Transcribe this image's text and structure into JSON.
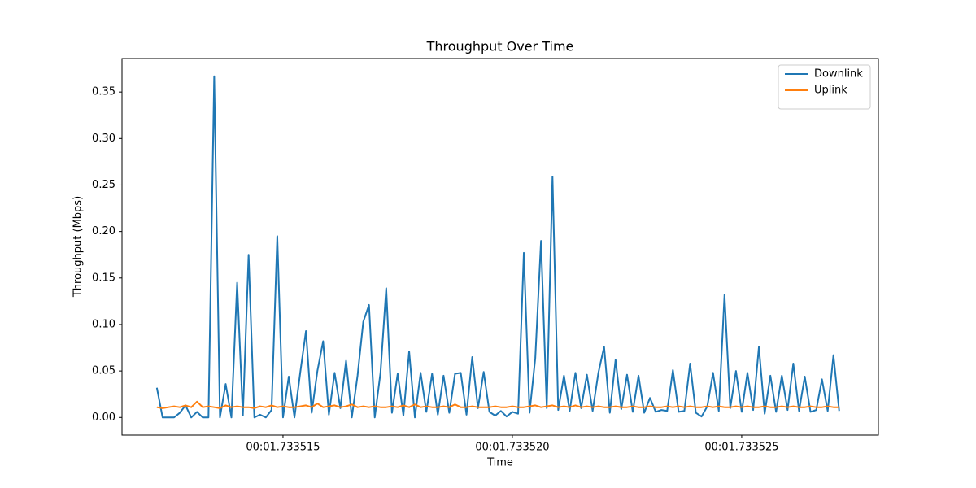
{
  "chart_data": {
    "type": "line",
    "title": "Throughput Over Time",
    "x_label": "Time",
    "y_label": "Throughput (Mbps)",
    "x": [
      1.73351225,
      1.733512375,
      1.7335125,
      1.733512625,
      1.73351275,
      1.733512875,
      1.733513,
      1.733513125,
      1.73351325,
      1.733513375,
      1.7335135,
      1.733513625,
      1.73351375,
      1.733513875,
      1.733514,
      1.733514125,
      1.73351425,
      1.733514375,
      1.7335145,
      1.733514625,
      1.73351475,
      1.733514875,
      1.733515,
      1.733515125,
      1.73351525,
      1.733515375,
      1.7335155,
      1.733515625,
      1.73351575,
      1.733515875,
      1.733516,
      1.733516125,
      1.73351625,
      1.733516375,
      1.7335165,
      1.733516625,
      1.73351675,
      1.733516875,
      1.733517,
      1.733517125,
      1.73351725,
      1.733517375,
      1.7335175,
      1.733517625,
      1.73351775,
      1.733517875,
      1.733518,
      1.733518125,
      1.73351825,
      1.733518375,
      1.7335185,
      1.733518625,
      1.73351875,
      1.733518875,
      1.733519,
      1.733519125,
      1.73351925,
      1.733519375,
      1.7335195,
      1.733519625,
      1.73351975,
      1.733519875,
      1.73352,
      1.733520125,
      1.73352025,
      1.733520375,
      1.7335205,
      1.733520625,
      1.73352075,
      1.733520875,
      1.733521,
      1.733521125,
      1.73352125,
      1.733521375,
      1.7335215,
      1.733521625,
      1.73352175,
      1.733521875,
      1.733522,
      1.733522125,
      1.73352225,
      1.733522375,
      1.7335225,
      1.733522625,
      1.73352275,
      1.733522875,
      1.733523,
      1.733523125,
      1.73352325,
      1.733523375,
      1.7335235,
      1.733523625,
      1.73352375,
      1.733523875,
      1.733524,
      1.733524125,
      1.73352425,
      1.733524375,
      1.7335245,
      1.733524625,
      1.73352475,
      1.733524875,
      1.733525,
      1.733525125,
      1.73352525,
      1.733525375,
      1.7335255,
      1.733525625,
      1.73352575,
      1.733525875,
      1.733526,
      1.733526125,
      1.73352625,
      1.733526375,
      1.7335265,
      1.733526625,
      1.73352675,
      1.733526875,
      1.733527,
      1.733527125
    ],
    "series": [
      {
        "name": "Downlink",
        "color": "#1f77b4",
        "values": [
          0.032,
          0,
          0,
          0,
          0.005,
          0.013,
          0,
          0.006,
          0,
          0,
          0.367,
          0,
          0.036,
          0,
          0.145,
          0.002,
          0.175,
          0,
          0.003,
          0,
          0.008,
          0.195,
          0,
          0.044,
          0,
          0.048,
          0.093,
          0.005,
          0.05,
          0.082,
          0.003,
          0.048,
          0.01,
          0.061,
          0,
          0.045,
          0.103,
          0.121,
          0,
          0.048,
          0.139,
          0.005,
          0.047,
          0.002,
          0.071,
          0,
          0.048,
          0.006,
          0.047,
          0.003,
          0.045,
          0.005,
          0.047,
          0.048,
          0.003,
          0.065,
          0.01,
          0.049,
          0.006,
          0.002,
          0.007,
          0.001,
          0.006,
          0.004,
          0.177,
          0.005,
          0.064,
          0.19,
          0.01,
          0.259,
          0.008,
          0.045,
          0.007,
          0.048,
          0.01,
          0.046,
          0.007,
          0.048,
          0.076,
          0.005,
          0.062,
          0.009,
          0.046,
          0.006,
          0.045,
          0.005,
          0.021,
          0.006,
          0.008,
          0.007,
          0.051,
          0.006,
          0.007,
          0.058,
          0.005,
          0.001,
          0.012,
          0.048,
          0.007,
          0.132,
          0.01,
          0.05,
          0.006,
          0.048,
          0.008,
          0.076,
          0.004,
          0.045,
          0.006,
          0.045,
          0.008,
          0.058,
          0.007,
          0.044,
          0.006,
          0.008,
          0.041,
          0.007,
          0.067,
          0.007
        ]
      },
      {
        "name": "Uplink",
        "color": "#ff7f0e",
        "values": [
          0.011,
          0.01,
          0.011,
          0.012,
          0.011,
          0.013,
          0.011,
          0.017,
          0.011,
          0.012,
          0.011,
          0.01,
          0.013,
          0.011,
          0.012,
          0.011,
          0.011,
          0.01,
          0.012,
          0.011,
          0.013,
          0.011,
          0.012,
          0.011,
          0.011,
          0.012,
          0.013,
          0.011,
          0.015,
          0.011,
          0.012,
          0.013,
          0.011,
          0.012,
          0.014,
          0.011,
          0.012,
          0.011,
          0.012,
          0.011,
          0.011,
          0.012,
          0.011,
          0.013,
          0.011,
          0.014,
          0.011,
          0.012,
          0.011,
          0.011,
          0.012,
          0.011,
          0.014,
          0.011,
          0.011,
          0.012,
          0.011,
          0.011,
          0.011,
          0.012,
          0.011,
          0.011,
          0.012,
          0.011,
          0.011,
          0.012,
          0.013,
          0.011,
          0.012,
          0.013,
          0.011,
          0.012,
          0.011,
          0.013,
          0.011,
          0.012,
          0.011,
          0.012,
          0.011,
          0.011,
          0.012,
          0.011,
          0.011,
          0.012,
          0.011,
          0.011,
          0.012,
          0.011,
          0.011,
          0.012,
          0.011,
          0.012,
          0.011,
          0.012,
          0.011,
          0.011,
          0.012,
          0.011,
          0.012,
          0.011,
          0.011,
          0.012,
          0.011,
          0.012,
          0.011,
          0.011,
          0.012,
          0.011,
          0.011,
          0.012,
          0.011,
          0.012,
          0.011,
          0.011,
          0.012,
          0.011,
          0.011,
          0.012,
          0.011,
          0.011
        ]
      }
    ],
    "xlim": [
      1.73351149,
      1.73352798
    ],
    "xticks": [
      {
        "value": 1.733515,
        "label": "00:01.733515"
      },
      {
        "value": 1.73352,
        "label": "00:01.733520"
      },
      {
        "value": 1.733525,
        "label": "00:01.733525"
      }
    ],
    "ylim": [
      -0.019,
      0.386
    ],
    "yticks": [
      {
        "value": 0,
        "label": "0.00"
      },
      {
        "value": 0.05,
        "label": "0.05"
      },
      {
        "value": 0.1,
        "label": "0.10"
      },
      {
        "value": 0.15,
        "label": "0.15"
      },
      {
        "value": 0.2,
        "label": "0.20"
      },
      {
        "value": 0.25,
        "label": "0.25"
      },
      {
        "value": 0.3,
        "label": "0.30"
      },
      {
        "value": 0.35,
        "label": "0.35"
      }
    ],
    "legend": "upper right",
    "grid": false
  }
}
